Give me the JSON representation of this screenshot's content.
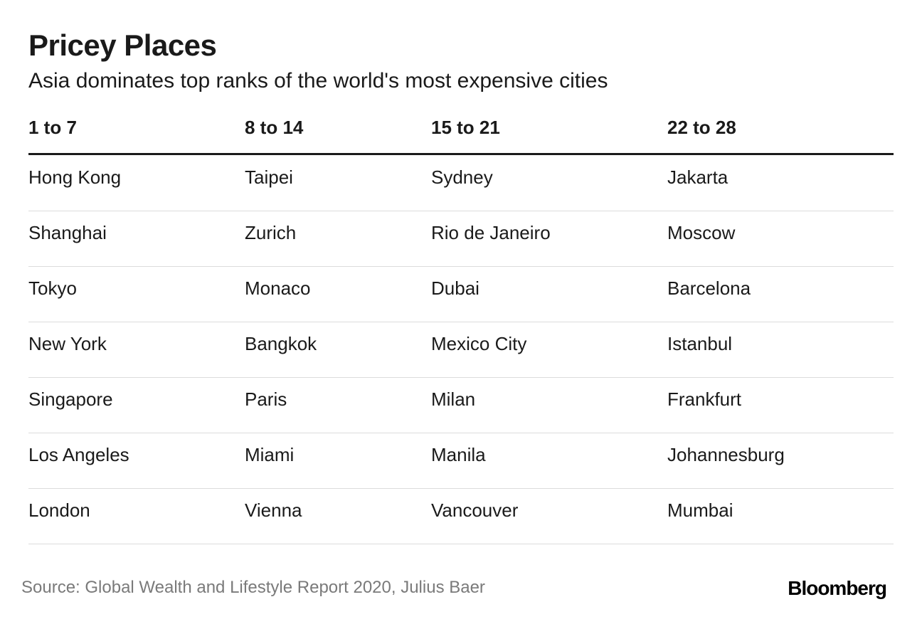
{
  "header": {
    "title": "Pricey Places",
    "subtitle": "Asia dominates top ranks of the world's most expensive cities"
  },
  "table": {
    "columns": [
      "1 to 7",
      "8 to 14",
      "15 to 21",
      "22 to 28"
    ],
    "rows": [
      [
        "Hong Kong",
        "Taipei",
        "Sydney",
        "Jakarta"
      ],
      [
        "Shanghai",
        "Zurich",
        "Rio de Janeiro",
        "Moscow"
      ],
      [
        "Tokyo",
        "Monaco",
        "Dubai",
        "Barcelona"
      ],
      [
        "New York",
        "Bangkok",
        "Mexico City",
        "Istanbul"
      ],
      [
        "Singapore",
        "Paris",
        "Milan",
        "Frankfurt"
      ],
      [
        "Los Angeles",
        "Miami",
        "Manila",
        "Johannesburg"
      ],
      [
        "London",
        "Vienna",
        "Vancouver",
        "Mumbai"
      ]
    ]
  },
  "footer": {
    "source": "Source: Global Wealth and Lifestyle Report 2020, Julius Baer",
    "logo": "Bloomberg"
  }
}
